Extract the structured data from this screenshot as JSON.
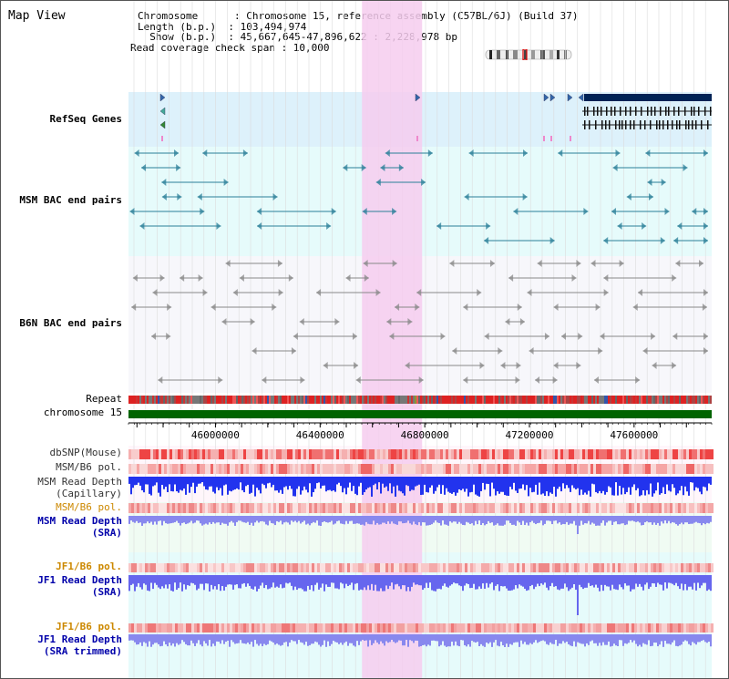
{
  "app": {
    "title": "Map View"
  },
  "info": {
    "chromosome": "Chromosome      : Chromosome 15, reference assembly (C57BL/6J) (Build 37)",
    "length": "Length (b.p.)  : 103,494,974",
    "show": "  Show (b.p.)  : 45,667,645-47,896,622 : 2,228,978 bp",
    "coverage": "Read coverage check span : 10,000"
  },
  "tracks": {
    "refseq": {
      "label": "RefSeq Genes",
      "color": "#0000aa"
    },
    "msm_bac": {
      "label": "MSM BAC end pairs",
      "color": "#006677"
    },
    "b6n_bac": {
      "label": "B6N BAC end pairs",
      "color": "#555555"
    },
    "repeat": {
      "label": "Repeat"
    },
    "chromosome": {
      "label": "chromosome 15"
    },
    "dbsnp": {
      "label": "dbSNP(Mouse)"
    },
    "msm_b6_pol": {
      "label": "MSM/B6 pol."
    },
    "msm_read_depth_cap": {
      "label_1": "MSM Read Depth",
      "label_2": "(Capillary)"
    },
    "msm_b6_pol_2": {
      "label": "MSM/B6 pol.",
      "color": "#cc8800"
    },
    "msm_read_depth_sra": {
      "label_1": "MSM Read Depth",
      "label_2": "(SRA)"
    },
    "jf1_b6_pol": {
      "label": "JF1/B6 pol.",
      "color": "#cc8800"
    },
    "jf1_read_depth_sra": {
      "label_1": "JF1 Read Depth",
      "label_2": "(SRA)"
    },
    "jf1_b6_pol_2": {
      "label": "JF1/B6 pol.",
      "color": "#cc8800"
    },
    "jf1_read_depth_trim": {
      "label_1": "JF1 Read Depth",
      "label_2": "(SRA trimmed)"
    }
  },
  "axis": {
    "ticks": [
      "46000000",
      "46400000",
      "46800000",
      "47200000",
      "47600000"
    ]
  },
  "highlight": {
    "start_bp": 46560000,
    "end_bp": 46790000,
    "color": "#f6cdef"
  },
  "view": {
    "start_bp": 45667645,
    "end_bp": 47896622
  }
}
